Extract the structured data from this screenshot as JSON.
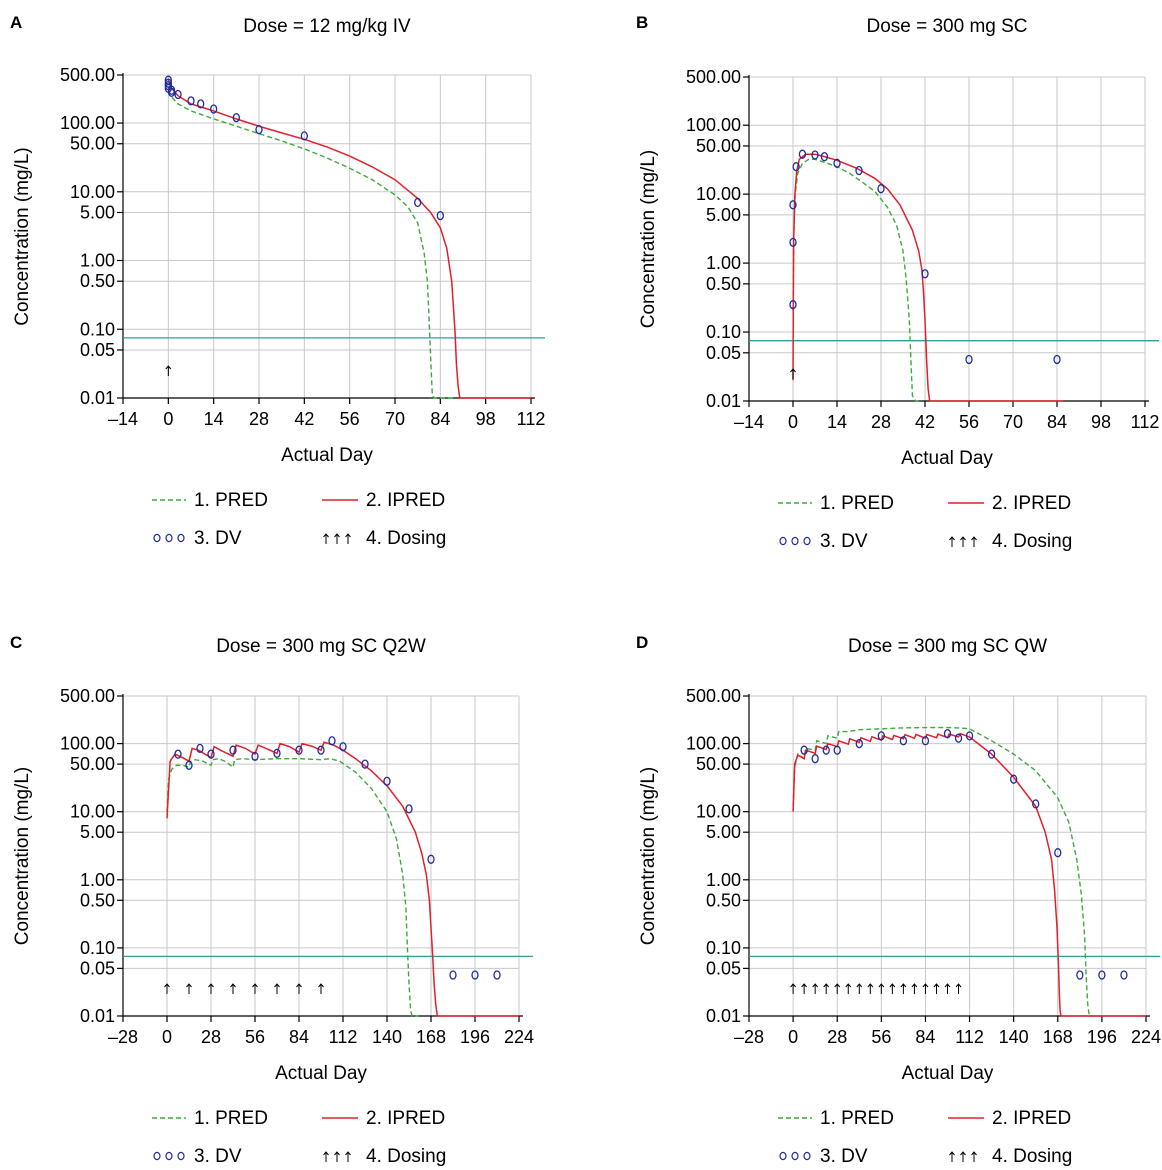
{
  "chart_data": [
    {
      "panel": "A",
      "type": "line",
      "title": "Dose = 12 mg/kg IV",
      "xlabel": "Actual Day",
      "ylabel": "Concentration (mg/L)",
      "y_scale": "log",
      "xlim": [
        -14,
        112
      ],
      "ylim": [
        0.01,
        500
      ],
      "x_ticks": [
        -14,
        0,
        14,
        28,
        42,
        56,
        70,
        84,
        98,
        112
      ],
      "x_tick_labels": [
        "–14",
        "0",
        "14",
        "28",
        "42",
        "56",
        "70",
        "84",
        "98",
        "112"
      ],
      "y_ticks": [
        500,
        100,
        50,
        10,
        5,
        1,
        0.5,
        0.1,
        0.05,
        0.01
      ],
      "y_tick_labels": [
        "500.00",
        "100.00",
        "50.00",
        "10.00",
        "5.00",
        "1.00",
        "0.50",
        "0.10",
        "0.05",
        "0.01"
      ],
      "grid": true,
      "reference_line_y": 0.075,
      "pred": {
        "x": [
          0,
          1,
          3,
          7,
          14,
          21,
          28,
          35,
          42,
          49,
          56,
          63,
          70,
          74,
          77,
          79,
          80,
          80.5,
          81,
          81.5,
          82,
          88
        ],
        "y": [
          300,
          240,
          190,
          150,
          115,
          90,
          70,
          55,
          42,
          31,
          22,
          15,
          9,
          6,
          3.5,
          1.3,
          0.5,
          0.15,
          0.04,
          0.012,
          0.01,
          0.01
        ]
      },
      "ipred": {
        "x": [
          0,
          1,
          3,
          7,
          14,
          21,
          28,
          35,
          42,
          49,
          56,
          63,
          70,
          77,
          81,
          84,
          86,
          87.5,
          88.5,
          89,
          89.5,
          90,
          112
        ],
        "y": [
          420,
          320,
          250,
          190,
          150,
          115,
          90,
          72,
          58,
          45,
          33,
          23,
          15,
          8,
          5,
          3,
          1.5,
          0.5,
          0.1,
          0.03,
          0.015,
          0.01,
          0.01
        ]
      },
      "dv": {
        "x": [
          0,
          0,
          0,
          0,
          1,
          1,
          3,
          7,
          10,
          14,
          21,
          28,
          42,
          77,
          84
        ],
        "y": [
          420,
          380,
          350,
          320,
          300,
          280,
          260,
          210,
          190,
          160,
          120,
          80,
          65,
          7,
          4.5
        ]
      },
      "dosing_x": [
        0
      ],
      "legend_items": [
        "1. PRED",
        "2. IPRED",
        "3. DV",
        "4. Dosing"
      ]
    },
    {
      "panel": "B",
      "type": "line",
      "title": "Dose = 300 mg SC",
      "xlabel": "Actual Day",
      "ylabel": "Concentration (mg/L)",
      "y_scale": "log",
      "xlim": [
        -14,
        112
      ],
      "ylim": [
        0.01,
        500
      ],
      "x_ticks": [
        -14,
        0,
        14,
        28,
        42,
        56,
        70,
        84,
        98,
        112
      ],
      "x_tick_labels": [
        "–14",
        "0",
        "14",
        "28",
        "42",
        "56",
        "70",
        "84",
        "98",
        "112"
      ],
      "y_ticks": [
        500,
        100,
        50,
        10,
        5,
        1,
        0.5,
        0.1,
        0.05,
        0.01
      ],
      "y_tick_labels": [
        "500.00",
        "100.00",
        "50.00",
        "10.00",
        "5.00",
        "1.00",
        "0.50",
        "0.10",
        "0.05",
        "0.01"
      ],
      "grid": true,
      "reference_line_y": 0.075,
      "pred": {
        "x": [
          0,
          0.3,
          0.7,
          1.5,
          3,
          5,
          7,
          10,
          14,
          18,
          22,
          26,
          30,
          33,
          35,
          36,
          37,
          37.5,
          38,
          39,
          40
        ],
        "y": [
          0.2,
          3,
          10,
          20,
          28,
          32,
          32,
          29,
          25,
          20,
          15,
          11,
          6.5,
          3.5,
          1.5,
          0.6,
          0.15,
          0.04,
          0.012,
          0.01,
          0.01
        ]
      },
      "ipred": {
        "x": [
          0,
          0.2,
          0.6,
          1.2,
          2,
          4,
          7,
          10,
          14,
          20,
          26,
          30,
          34,
          38,
          40,
          41,
          41.5,
          42,
          42.5,
          43,
          43.5,
          86
        ],
        "y": [
          0.02,
          2,
          10,
          22,
          32,
          38,
          38,
          35,
          31,
          24,
          17,
          12,
          7,
          3,
          1.5,
          0.8,
          0.4,
          0.15,
          0.04,
          0.015,
          0.01,
          0.01
        ]
      },
      "dv": {
        "x": [
          0,
          0,
          0,
          1,
          3,
          7,
          10,
          14,
          21,
          28,
          42,
          56,
          84
        ],
        "y": [
          0.25,
          2,
          7,
          25,
          38,
          37,
          35,
          28,
          22,
          12,
          0.7,
          0.04,
          0.04
        ]
      },
      "dosing_x": [
        0
      ],
      "legend_items": [
        "1. PRED",
        "2. IPRED",
        "3. DV",
        "4. Dosing"
      ]
    },
    {
      "panel": "C",
      "type": "line",
      "title": "Dose = 300 mg SC Q2W",
      "xlabel": "Actual Day",
      "ylabel": "Concentration (mg/L)",
      "y_scale": "log",
      "xlim": [
        -28,
        224
      ],
      "ylim": [
        0.01,
        500
      ],
      "x_ticks": [
        -28,
        0,
        28,
        56,
        84,
        112,
        140,
        168,
        196,
        224
      ],
      "x_tick_labels": [
        "–28",
        "0",
        "28",
        "56",
        "84",
        "112",
        "140",
        "168",
        "196",
        "224"
      ],
      "y_ticks": [
        500,
        100,
        50,
        10,
        5,
        1,
        0.5,
        0.1,
        0.05,
        0.01
      ],
      "y_tick_labels": [
        "500.00",
        "100.00",
        "50.00",
        "10.00",
        "5.00",
        "1.00",
        "0.50",
        "0.10",
        "0.05",
        "0.01"
      ],
      "grid": true,
      "reference_line_y": 0.075,
      "pred": {
        "x": [
          0,
          1,
          3,
          6,
          10,
          14,
          15,
          18,
          23,
          28,
          29,
          33,
          37,
          42,
          43,
          48,
          56,
          70,
          84,
          98,
          104,
          110,
          120,
          130,
          140,
          146,
          150,
          152,
          153,
          154,
          155,
          156,
          160
        ],
        "y": [
          10,
          30,
          42,
          48,
          48,
          45,
          55,
          58,
          55,
          48,
          58,
          60,
          55,
          45,
          58,
          60,
          58,
          60,
          60,
          58,
          60,
          55,
          38,
          22,
          10,
          4,
          1.2,
          0.4,
          0.1,
          0.03,
          0.012,
          0.01,
          0.01
        ]
      },
      "ipred": {
        "x": [
          0,
          2,
          5,
          10,
          14,
          16,
          20,
          28,
          30,
          35,
          42,
          44,
          50,
          56,
          58,
          63,
          70,
          72,
          78,
          84,
          86,
          92,
          98,
          100,
          106,
          112,
          120,
          130,
          140,
          150,
          158,
          162,
          165,
          167,
          168,
          169,
          170,
          171,
          172,
          173,
          224
        ],
        "y": [
          8,
          55,
          70,
          62,
          55,
          85,
          80,
          62,
          90,
          78,
          65,
          95,
          85,
          70,
          95,
          85,
          72,
          100,
          90,
          75,
          100,
          92,
          80,
          105,
          95,
          80,
          60,
          40,
          24,
          12,
          5,
          2.5,
          1.2,
          0.5,
          0.2,
          0.08,
          0.03,
          0.015,
          0.01,
          0.01,
          0.01
        ]
      },
      "dv": {
        "x": [
          7,
          14,
          21,
          28,
          42,
          56,
          70,
          84,
          98,
          105,
          112,
          126,
          140,
          154,
          168,
          182,
          196,
          210
        ],
        "y": [
          70,
          48,
          85,
          70,
          80,
          65,
          72,
          80,
          80,
          110,
          90,
          50,
          28,
          11,
          2,
          0.04,
          0.04,
          0.04
        ]
      },
      "dosing_x": [
        0,
        14,
        28,
        42,
        56,
        70,
        84,
        98
      ],
      "legend_items": [
        "1. PRED",
        "2. IPRED",
        "3. DV",
        "4. Dosing"
      ]
    },
    {
      "panel": "D",
      "type": "line",
      "title": "Dose = 300 mg SC QW",
      "xlabel": "Actual Day",
      "ylabel": "Concentration (mg/L)",
      "y_scale": "log",
      "xlim": [
        -28,
        224
      ],
      "ylim": [
        0.01,
        500
      ],
      "x_ticks": [
        -28,
        0,
        28,
        56,
        84,
        112,
        140,
        168,
        196,
        224
      ],
      "x_tick_labels": [
        "–28",
        "0",
        "28",
        "56",
        "84",
        "112",
        "140",
        "168",
        "196",
        "224"
      ],
      "y_ticks": [
        500,
        100,
        50,
        10,
        5,
        1,
        0.5,
        0.1,
        0.05,
        0.01
      ],
      "y_tick_labels": [
        "500.00",
        "100.00",
        "50.00",
        "10.00",
        "5.00",
        "1.00",
        "0.50",
        "0.10",
        "0.05",
        "0.01"
      ],
      "grid": true,
      "reference_line_y": 0.075,
      "pred": {
        "x": [
          0,
          1,
          3,
          7,
          8,
          14,
          15,
          21,
          22,
          28,
          29,
          35,
          42,
          56,
          70,
          84,
          98,
          105,
          112,
          126,
          140,
          154,
          168,
          175,
          180,
          183,
          185,
          186,
          187,
          188,
          189,
          190
        ],
        "y": [
          12,
          45,
          70,
          60,
          85,
          80,
          110,
          100,
          130,
          120,
          150,
          150,
          160,
          165,
          170,
          172,
          172,
          170,
          165,
          110,
          70,
          40,
          16,
          7,
          2,
          0.6,
          0.15,
          0.04,
          0.015,
          0.01,
          0.01,
          0.01
        ]
      },
      "ipred": {
        "x": [
          0,
          1,
          3,
          7,
          8,
          14,
          15,
          21,
          22,
          28,
          29,
          35,
          36,
          42,
          43,
          49,
          50,
          56,
          57,
          63,
          64,
          70,
          71,
          77,
          78,
          84,
          85,
          91,
          92,
          98,
          99,
          105,
          106,
          112,
          126,
          140,
          154,
          160,
          164,
          166,
          167.5,
          168.5,
          169,
          169.5,
          170,
          224
        ],
        "y": [
          10,
          50,
          68,
          60,
          80,
          72,
          92,
          82,
          100,
          90,
          110,
          98,
          118,
          104,
          122,
          108,
          126,
          112,
          130,
          115,
          132,
          118,
          135,
          120,
          136,
          120,
          136,
          122,
          138,
          122,
          138,
          125,
          140,
          125,
          70,
          32,
          12,
          5,
          2,
          0.7,
          0.2,
          0.05,
          0.02,
          0.012,
          0.01,
          0.01
        ]
      },
      "dv": {
        "x": [
          7,
          14,
          21,
          28,
          42,
          56,
          70,
          84,
          98,
          105,
          112,
          126,
          140,
          154,
          168,
          182,
          196,
          210
        ],
        "y": [
          80,
          60,
          80,
          80,
          100,
          130,
          110,
          110,
          140,
          120,
          130,
          70,
          30,
          13,
          2.5,
          0.04,
          0.04,
          0.04
        ]
      },
      "dosing_x": [
        0,
        7,
        14,
        21,
        28,
        35,
        42,
        49,
        56,
        63,
        70,
        77,
        84,
        91,
        98,
        105
      ],
      "legend_items": [
        "1. PRED",
        "2. IPRED",
        "3. DV",
        "4. Dosing"
      ]
    }
  ],
  "colors": {
    "pred": "#3daa3d",
    "ipred": "#e0202a",
    "dv": "#1f2a9e",
    "reference": "#2aa19a",
    "grid": "#c8c8c8"
  }
}
